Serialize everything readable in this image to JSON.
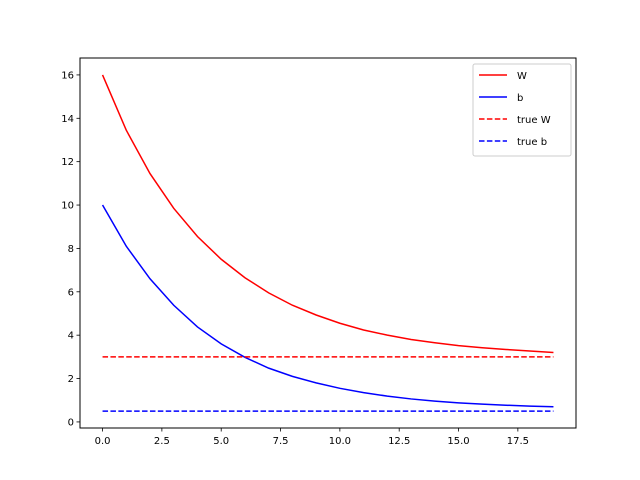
{
  "chart_data": {
    "type": "line",
    "title": "",
    "xlabel": "",
    "ylabel": "",
    "xlim": [
      -0.95,
      19.95
    ],
    "ylim": [
      -0.28,
      16.78
    ],
    "xticks": [
      0.0,
      2.5,
      5.0,
      7.5,
      10.0,
      12.5,
      15.0,
      17.5
    ],
    "xtick_labels": [
      "0.0",
      "2.5",
      "5.0",
      "7.5",
      "10.0",
      "12.5",
      "15.0",
      "17.5"
    ],
    "yticks": [
      0,
      2,
      4,
      6,
      8,
      10,
      12,
      14,
      16
    ],
    "ytick_labels": [
      "0",
      "2",
      "4",
      "6",
      "8",
      "10",
      "12",
      "14",
      "16"
    ],
    "grid": false,
    "legend_position": "top-right",
    "series": [
      {
        "name": "W",
        "color": "#ff0000",
        "style": "solid",
        "x": [
          0,
          1,
          2,
          3,
          4,
          5,
          6,
          7,
          8,
          9,
          10,
          11,
          12,
          13,
          14,
          15,
          16,
          17,
          18,
          19
        ],
        "y": [
          16.0,
          13.45,
          11.45,
          9.85,
          8.55,
          7.5,
          6.65,
          5.95,
          5.38,
          4.93,
          4.55,
          4.24,
          4.0,
          3.8,
          3.65,
          3.52,
          3.42,
          3.34,
          3.27,
          3.2
        ]
      },
      {
        "name": "b",
        "color": "#0000ff",
        "style": "solid",
        "x": [
          0,
          1,
          2,
          3,
          4,
          5,
          6,
          7,
          8,
          9,
          10,
          11,
          12,
          13,
          14,
          15,
          16,
          17,
          18,
          19
        ],
        "y": [
          10.0,
          8.1,
          6.6,
          5.38,
          4.38,
          3.6,
          2.98,
          2.48,
          2.1,
          1.8,
          1.55,
          1.35,
          1.19,
          1.06,
          0.96,
          0.88,
          0.82,
          0.77,
          0.73,
          0.7
        ]
      },
      {
        "name": "true W",
        "color": "#ff0000",
        "style": "dashed",
        "x": [
          0,
          19
        ],
        "y": [
          3.0,
          3.0
        ]
      },
      {
        "name": "true b",
        "color": "#0000ff",
        "style": "dashed",
        "x": [
          0,
          19
        ],
        "y": [
          0.5,
          0.5
        ]
      }
    ]
  }
}
